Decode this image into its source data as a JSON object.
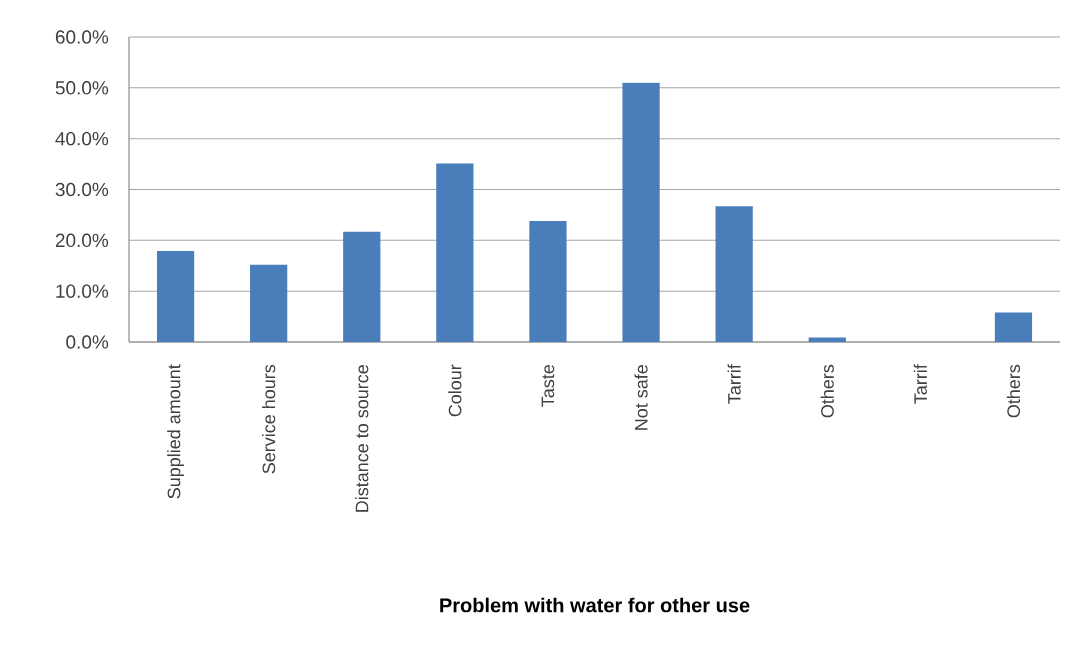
{
  "chart_data": {
    "type": "bar",
    "xlabel": "Problem with water for other use",
    "categories": [
      "Supplied amount",
      "Service hours",
      "Distance to source",
      "Colour",
      "Taste",
      "Not safe",
      "Tarrif",
      "Others",
      "Tarrif",
      "Others"
    ],
    "values": [
      17.9,
      15.2,
      21.7,
      35.1,
      23.8,
      51.0,
      26.7,
      0.9,
      0,
      5.8
    ],
    "color": "#4a7ebb",
    "ylim": [
      0,
      60
    ],
    "yticks": [
      {
        "value": 0,
        "label": "0.0%"
      },
      {
        "value": 10,
        "label": "10.0%"
      },
      {
        "value": 20,
        "label": "20.0%"
      },
      {
        "value": 30,
        "label": "30.0%"
      },
      {
        "value": 40,
        "label": "40.0%"
      },
      {
        "value": 50,
        "label": "50.0%"
      },
      {
        "value": 60,
        "label": "60.0%"
      }
    ],
    "grid": "y"
  }
}
